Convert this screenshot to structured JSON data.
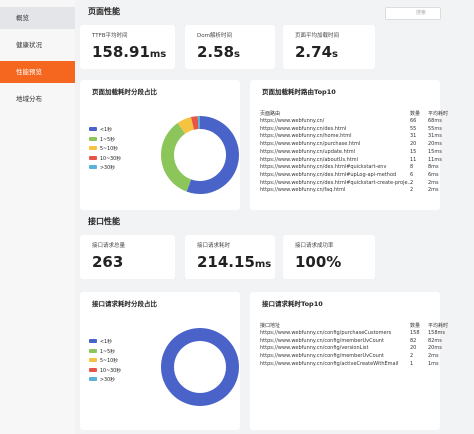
{
  "sidebar": {
    "items": [
      "概览",
      "健康状况",
      "性能预览",
      "地域分布"
    ],
    "active": 2
  },
  "search": {
    "placeholder": "搜索"
  },
  "page_section": {
    "title": "页面性能",
    "kpis": [
      {
        "label": "TTFB平均时间",
        "value": "158.91",
        "unit": "ms"
      },
      {
        "label": "Dom解析时间",
        "value": "2.58",
        "unit": "s"
      },
      {
        "label": "页面平均加载时间",
        "value": "2.74",
        "unit": "s"
      }
    ],
    "donut": {
      "type": "pie",
      "title": "页面加载耗时分段占比",
      "categories": [
        "<1秒",
        "1~5秒",
        "5~10秒",
        "10~30秒",
        ">30秒"
      ],
      "colors": [
        "#4a63c8",
        "#8cc65a",
        "#f5c242",
        "#e8534a",
        "#5ab2d8"
      ],
      "values": [
        120,
        75,
        13,
        6,
        2
      ]
    },
    "table": {
      "title": "页面加载耗时路由Top10",
      "columns": [
        "页面路由",
        "数量",
        "平均耗时"
      ],
      "rows": [
        [
          "https://www.webfunny.cn/",
          "66",
          "68ms"
        ],
        [
          "https://www.webfunny.cn/des.html",
          "55",
          "55ms"
        ],
        [
          "https://www.webfunny.cn/home.html",
          "31",
          "31ms"
        ],
        [
          "https://www.webfunny.cn/purchase.html",
          "20",
          "20ms"
        ],
        [
          "https://www.webfunny.cn/update.html",
          "15",
          "15ms"
        ],
        [
          "https://www.webfunny.cn/aboutUs.html",
          "11",
          "11ms"
        ],
        [
          "https://www.webfunny.cn/des.html#quickstart-env",
          "8",
          "8ms"
        ],
        [
          "https://www.webfunny.cn/des.html#upLog-api-method",
          "6",
          "6ms"
        ],
        [
          "https://www.webfunny.cn/des.html#quickstart-create-proje...",
          "2",
          "2ms"
        ],
        [
          "https://www.webfunny.cn/faq.html",
          "2",
          "2ms"
        ]
      ]
    }
  },
  "api_section": {
    "title": "接口性能",
    "kpis": [
      {
        "label": "接口请求总量",
        "value": "263",
        "unit": ""
      },
      {
        "label": "接口请求耗时",
        "value": "214.15",
        "unit": "ms"
      },
      {
        "label": "接口请求成功率",
        "value": "100%",
        "unit": ""
      }
    ],
    "donut": {
      "type": "pie",
      "title": "接口请求耗时分段占比",
      "categories": [
        "<1秒",
        "1~5秒",
        "5~10秒",
        "10~30秒",
        ">30秒"
      ],
      "colors": [
        "#4a63c8",
        "#8cc65a",
        "#f5c242",
        "#e8534a",
        "#5ab2d8"
      ],
      "values": [
        263,
        0,
        0,
        0,
        0
      ]
    },
    "table": {
      "title": "接口请求耗时Top10",
      "columns": [
        "接口地址",
        "数量",
        "平均耗时"
      ],
      "rows": [
        [
          "https://www.webfunny.cn/config/purchaseCustomers",
          "158",
          "158ms"
        ],
        [
          "https://www.webfunny.cn/config/memberUvCount",
          "82",
          "82ms"
        ],
        [
          "https://www.webfunny.cn/config/versionList",
          "20",
          "20ms"
        ],
        [
          "https://www.webfunny.cn/config/memberUvCount",
          "2",
          "2ms"
        ],
        [
          "https://www.webfunny.cn/config/activeCreateWithEmail",
          "1",
          "1ms"
        ]
      ]
    }
  }
}
